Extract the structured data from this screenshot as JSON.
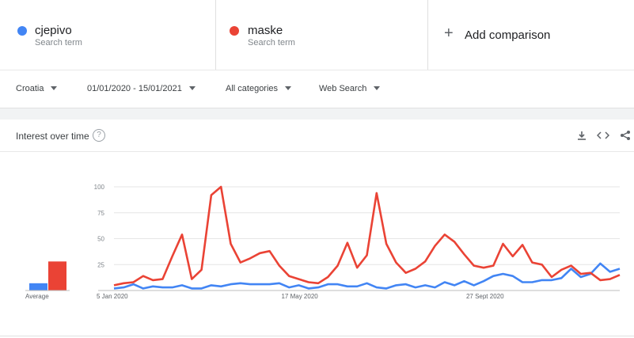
{
  "terms": [
    {
      "name": "cjepivo",
      "subtitle": "Search term",
      "color": "#4285f4"
    },
    {
      "name": "maske",
      "subtitle": "Search term",
      "color": "#ea4335"
    }
  ],
  "add_comparison": {
    "label": "Add comparison",
    "icon": "plus-icon"
  },
  "filters": {
    "region": "Croatia",
    "date_range": "01/01/2020 - 15/01/2021",
    "category": "All categories",
    "search_type": "Web Search"
  },
  "card": {
    "title": "Interest over time",
    "help_icon": "?",
    "icons": [
      "download-icon",
      "embed-icon",
      "share-icon"
    ]
  },
  "average_label": "Average",
  "chart_data": {
    "type": "line",
    "title": "",
    "ylim": [
      0,
      100
    ],
    "y_ticks": [
      25,
      50,
      75,
      100
    ],
    "x_tick_labels": [
      {
        "label": "5 Jan 2020",
        "index": 0
      },
      {
        "label": "17 May 2020",
        "index": 19
      },
      {
        "label": "27 Sept 2020",
        "index": 38
      }
    ],
    "averages": {
      "cjepivo": 7,
      "maske": 28
    },
    "series": [
      {
        "name": "cjepivo",
        "color": "#4285f4",
        "values": [
          2,
          3,
          6,
          2,
          4,
          3,
          3,
          5,
          2,
          2,
          5,
          4,
          6,
          7,
          6,
          6,
          6,
          7,
          3,
          5,
          2,
          3,
          6,
          6,
          4,
          4,
          7,
          3,
          2,
          5,
          6,
          3,
          5,
          3,
          8,
          5,
          9,
          5,
          9,
          14,
          16,
          14,
          8,
          8,
          10,
          10,
          12,
          21,
          13,
          16,
          26,
          18,
          21
        ]
      },
      {
        "name": "maske",
        "color": "#ea4335",
        "values": [
          5,
          7,
          8,
          14,
          10,
          11,
          33,
          54,
          11,
          20,
          92,
          100,
          45,
          27,
          31,
          36,
          38,
          24,
          14,
          11,
          8,
          7,
          13,
          24,
          46,
          22,
          34,
          94,
          45,
          27,
          17,
          21,
          28,
          43,
          54,
          47,
          35,
          24,
          22,
          24,
          45,
          33,
          44,
          27,
          25,
          13,
          20,
          24,
          16,
          17,
          10,
          11,
          15
        ]
      }
    ]
  }
}
